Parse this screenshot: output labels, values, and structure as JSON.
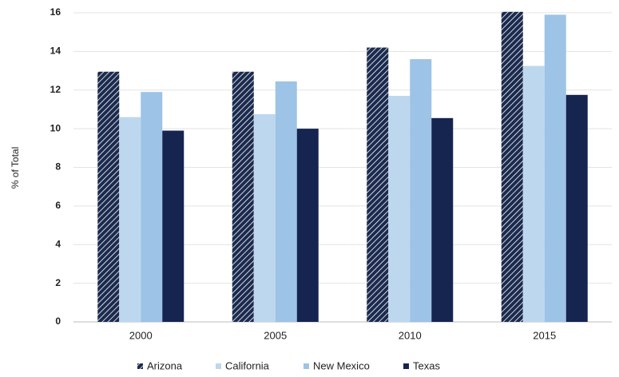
{
  "chart_data": {
    "type": "bar",
    "y_label": "% of Total",
    "categories": [
      "2000",
      "2005",
      "2010",
      "2015"
    ],
    "series": [
      {
        "name": "Arizona",
        "color": "#1b2a4e",
        "pattern": "hatch",
        "values": [
          12.95,
          12.95,
          14.2,
          16.05
        ]
      },
      {
        "name": "California",
        "color": "#bdd7ee",
        "values": [
          10.6,
          10.75,
          11.7,
          13.25
        ]
      },
      {
        "name": "New Mexico",
        "color": "#9dc3e6",
        "values": [
          11.9,
          12.45,
          13.6,
          15.9
        ]
      },
      {
        "name": "Texas",
        "color": "#162450",
        "values": [
          9.9,
          10.0,
          10.55,
          11.75
        ]
      }
    ],
    "ylim": [
      0,
      16
    ],
    "yticks": [
      0,
      2,
      4,
      6,
      8,
      10,
      12,
      14,
      16
    ],
    "grid": true,
    "legend": "bottom"
  }
}
